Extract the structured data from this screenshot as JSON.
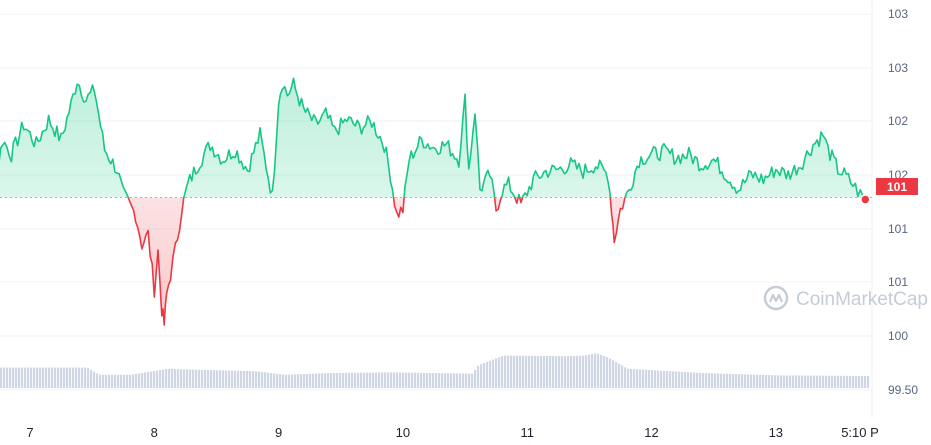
{
  "watermark": {
    "text": "CoinMarketCap",
    "icon": "coinmarketcap-logo-icon"
  },
  "colors": {
    "up_line": "#16c784",
    "down_line": "#ea3943",
    "up_fill": "#16c784",
    "down_fill": "#ea3943",
    "volume": "#cfd6e4",
    "grid": "#eff2f5",
    "baseline": "#a6b0c3",
    "tag_bg": "#ea3943",
    "dot": "#ea3943"
  },
  "chart_data": {
    "type": "area",
    "y_tick_labels": [
      "103",
      "103",
      "102",
      "102",
      "101",
      "101",
      "100",
      "99.50"
    ],
    "x_tick_labels": [
      "7",
      "8",
      "9",
      "10",
      "11",
      "12",
      "13",
      "5:10 P"
    ],
    "baseline_value": 101.32,
    "current_price_label": "101",
    "ylim": [
      99.42,
      103.16
    ],
    "grid": true,
    "anchors": [
      [
        6.5,
        101.37
      ],
      [
        6.55,
        101.55
      ],
      [
        6.6,
        101.4
      ],
      [
        6.7,
        101.35
      ],
      [
        6.78,
        101.9
      ],
      [
        6.85,
        101.75
      ],
      [
        6.95,
        102.05
      ],
      [
        7.05,
        101.85
      ],
      [
        7.15,
        102.1
      ],
      [
        7.25,
        101.9
      ],
      [
        7.33,
        102.25
      ],
      [
        7.38,
        102.5
      ],
      [
        7.45,
        102.3
      ],
      [
        7.52,
        102.4
      ],
      [
        7.6,
        101.8
      ],
      [
        7.7,
        101.6
      ],
      [
        7.75,
        101.35
      ],
      [
        7.8,
        101.25
      ],
      [
        7.85,
        101.15
      ],
      [
        7.9,
        100.85
      ],
      [
        7.95,
        100.95
      ],
      [
        8.0,
        100.4
      ],
      [
        8.03,
        100.78
      ],
      [
        8.06,
        100.2
      ],
      [
        8.08,
        100.05
      ],
      [
        8.1,
        100.35
      ],
      [
        8.13,
        100.55
      ],
      [
        8.17,
        100.8
      ],
      [
        8.22,
        101.2
      ],
      [
        8.27,
        101.45
      ],
      [
        8.35,
        101.65
      ],
      [
        8.45,
        101.85
      ],
      [
        8.55,
        101.7
      ],
      [
        8.65,
        101.8
      ],
      [
        8.75,
        101.6
      ],
      [
        8.85,
        101.95
      ],
      [
        8.95,
        101.33
      ],
      [
        9.0,
        102.3
      ],
      [
        9.03,
        102.48
      ],
      [
        9.07,
        102.35
      ],
      [
        9.12,
        102.45
      ],
      [
        9.2,
        102.2
      ],
      [
        9.3,
        102.05
      ],
      [
        9.38,
        102.15
      ],
      [
        9.45,
        101.98
      ],
      [
        9.55,
        102.1
      ],
      [
        9.65,
        102.02
      ],
      [
        9.75,
        102.08
      ],
      [
        9.85,
        101.85
      ],
      [
        9.9,
        101.55
      ],
      [
        9.95,
        101.15
      ],
      [
        10.0,
        101.2
      ],
      [
        10.05,
        101.7
      ],
      [
        10.15,
        101.9
      ],
      [
        10.25,
        101.82
      ],
      [
        10.35,
        101.85
      ],
      [
        10.45,
        101.7
      ],
      [
        10.5,
        102.3
      ],
      [
        10.53,
        101.6
      ],
      [
        10.58,
        102.2
      ],
      [
        10.62,
        101.4
      ],
      [
        10.7,
        101.55
      ],
      [
        10.75,
        101.2
      ],
      [
        10.8,
        101.4
      ],
      [
        10.85,
        101.45
      ],
      [
        10.95,
        101.25
      ],
      [
        11.05,
        101.5
      ],
      [
        11.15,
        101.58
      ],
      [
        11.25,
        101.6
      ],
      [
        11.35,
        101.65
      ],
      [
        11.45,
        101.58
      ],
      [
        11.55,
        101.65
      ],
      [
        11.65,
        101.55
      ],
      [
        11.68,
        101.2
      ],
      [
        11.7,
        100.9
      ],
      [
        11.75,
        101.2
      ],
      [
        11.82,
        101.4
      ],
      [
        11.9,
        101.7
      ],
      [
        12.0,
        101.75
      ],
      [
        12.1,
        101.78
      ],
      [
        12.2,
        101.72
      ],
      [
        12.3,
        101.75
      ],
      [
        12.4,
        101.65
      ],
      [
        12.5,
        101.7
      ],
      [
        12.6,
        101.55
      ],
      [
        12.7,
        101.4
      ],
      [
        12.8,
        101.55
      ],
      [
        12.9,
        101.5
      ],
      [
        13.0,
        101.6
      ],
      [
        13.1,
        101.55
      ],
      [
        13.2,
        101.65
      ],
      [
        13.3,
        101.85
      ],
      [
        13.38,
        101.95
      ],
      [
        13.42,
        101.8
      ],
      [
        13.5,
        101.6
      ],
      [
        13.55,
        101.55
      ],
      [
        13.62,
        101.45
      ],
      [
        13.68,
        101.35
      ],
      [
        13.72,
        101.3
      ]
    ],
    "volume_levels": [
      [
        6.5,
        0.34
      ],
      [
        7.45,
        0.34
      ],
      [
        7.55,
        0.22
      ],
      [
        7.8,
        0.22
      ],
      [
        8.1,
        0.32
      ],
      [
        8.4,
        0.3
      ],
      [
        8.8,
        0.28
      ],
      [
        9.05,
        0.22
      ],
      [
        9.4,
        0.25
      ],
      [
        9.9,
        0.26
      ],
      [
        10.2,
        0.25
      ],
      [
        10.55,
        0.24
      ],
      [
        10.6,
        0.38
      ],
      [
        10.8,
        0.54
      ],
      [
        11.3,
        0.53
      ],
      [
        11.45,
        0.54
      ],
      [
        11.55,
        0.58
      ],
      [
        11.65,
        0.5
      ],
      [
        11.8,
        0.32
      ],
      [
        12.4,
        0.25
      ],
      [
        13.0,
        0.21
      ],
      [
        13.72,
        0.2
      ]
    ]
  }
}
